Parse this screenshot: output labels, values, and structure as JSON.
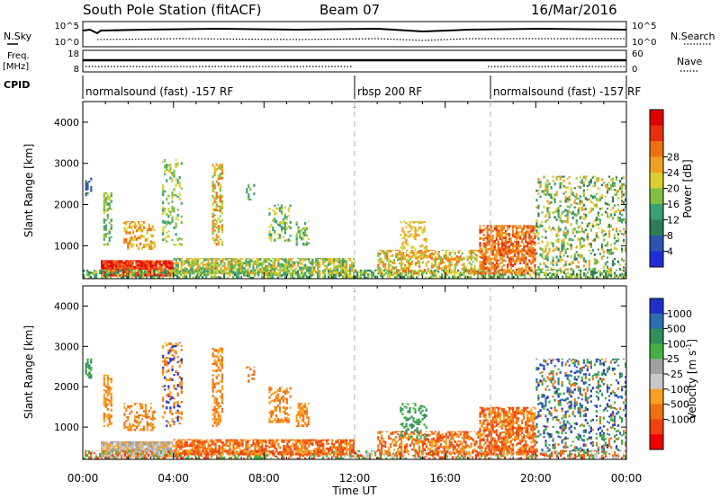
{
  "header": {
    "station": "South Pole Station (fitACF)",
    "beam": "Beam 07",
    "date": "16/Mar/2016"
  },
  "colors": {
    "power": [
      "#1f2fd8",
      "#2c55b0",
      "#2e7d55",
      "#3aa070",
      "#7fc040",
      "#d8d030",
      "#f0a020",
      "#f07010",
      "#e83010",
      "#e00000"
    ],
    "velocity": [
      "#ee0000",
      "#f04010",
      "#f07010",
      "#f8a020",
      "#c8c8c8",
      "#a0a0a0",
      "#44b044",
      "#30905a",
      "#2e6cb0",
      "#2030c8"
    ],
    "axis": "#000000",
    "divider": "#b0b0b0"
  },
  "params": {
    "nsky_label": "N.Sky",
    "nsky_ticks": [
      "10^5",
      "10^0"
    ],
    "nsearch_label": "N.Search",
    "nsearch_ticks": [
      "10^5",
      "10^0"
    ],
    "freq_label": "Freq.",
    "freq_unit": "[MHz]",
    "freq_ticks": [
      "18",
      "8"
    ],
    "nave_label": "Nave",
    "nave_ticks": [
      "60",
      "0"
    ],
    "cpid_label": "CPID",
    "cpid_segments": [
      {
        "start_hour": 0,
        "end_hour": 12,
        "label": "normalsound (fast) -157 RF"
      },
      {
        "start_hour": 12,
        "end_hour": 18,
        "label": "rbsp 200 RF"
      },
      {
        "start_hour": 18,
        "end_hour": 24,
        "label": "normalsound (fast) -157 RF"
      }
    ]
  },
  "chart_data": [
    {
      "type": "heatmap",
      "title": "",
      "xlabel": "",
      "ylabel": "Slant Range [km]",
      "xlim": [
        0,
        24
      ],
      "ylim": [
        200,
        4500
      ],
      "yticks": [
        "1000",
        "2000",
        "3000",
        "4000"
      ],
      "colorbar": {
        "label": "Power [dB]",
        "ticks": [
          "4",
          "8",
          "12",
          "16",
          "20",
          "24",
          "28"
        ]
      }
    },
    {
      "type": "heatmap",
      "title": "",
      "xlabel": "Time UT",
      "ylabel": "Slant Range [km]",
      "xlim": [
        0,
        24
      ],
      "ylim": [
        200,
        4500
      ],
      "yticks": [
        "1000",
        "2000",
        "3000",
        "4000"
      ],
      "xticks": [
        "00:00",
        "04:00",
        "08:00",
        "12:00",
        "16:00",
        "20:00",
        "00:00"
      ],
      "colorbar": {
        "label": "Velocity [m s",
        "label_sup": "-1",
        "label_end": "]",
        "ticks": [
          "1000",
          "500",
          "100",
          "25",
          "-25",
          "-100",
          "-500",
          "-1000"
        ]
      }
    }
  ]
}
